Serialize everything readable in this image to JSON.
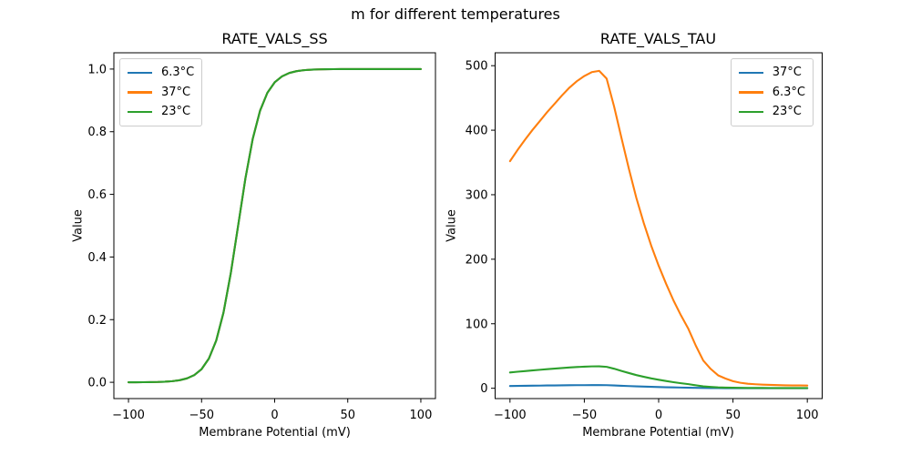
{
  "figure": {
    "title": "m for different temperatures",
    "background": "#ffffff",
    "text_color": "#000000",
    "spine_color": "#000000"
  },
  "chart_data": [
    {
      "type": "line",
      "title": "RATE_VALS_SS",
      "xlabel": "Membrane Potential (mV)",
      "ylabel": "Value",
      "axes_rect": [
        125,
        58,
        353,
        380
      ],
      "xlim": [
        -110,
        110
      ],
      "ylim": [
        -0.052,
        1.052
      ],
      "xticks": [
        -100,
        -50,
        0,
        50,
        100
      ],
      "xtick_labels": [
        "−100",
        "−50",
        "0",
        "50",
        "100"
      ],
      "yticks": [
        0.0,
        0.2,
        0.4,
        0.6,
        0.8,
        1.0
      ],
      "ytick_labels": [
        "0.0",
        "0.2",
        "0.4",
        "0.6",
        "0.8",
        "1.0"
      ],
      "grid": false,
      "legend_position": "upper-left",
      "legend": [
        {
          "label": "6.3°C",
          "color": "#1f77b4"
        },
        {
          "label": "37°C",
          "color": "#ff7f0e"
        },
        {
          "label": "23°C",
          "color": "#2ca02c"
        }
      ],
      "x": [
        -100,
        -95,
        -90,
        -85,
        -80,
        -75,
        -70,
        -65,
        -60,
        -55,
        -50,
        -45,
        -40,
        -35,
        -30,
        -25,
        -20,
        -15,
        -10,
        -5,
        0,
        5,
        10,
        15,
        20,
        25,
        30,
        35,
        40,
        45,
        50,
        55,
        60,
        65,
        70,
        75,
        80,
        85,
        90,
        95,
        100
      ],
      "series": [
        {
          "name": "6.3°C",
          "color": "#1f77b4",
          "values": [
            0.0001,
            0.0002,
            0.0003,
            0.0006,
            0.001,
            0.0019,
            0.0036,
            0.0067,
            0.0124,
            0.023,
            0.042,
            0.0759,
            0.133,
            0.2227,
            0.3487,
            0.5,
            0.6513,
            0.7773,
            0.867,
            0.9241,
            0.9576,
            0.9766,
            0.9876,
            0.9933,
            0.9964,
            0.9981,
            0.999,
            0.9995,
            0.9997,
            0.9999,
            0.9999,
            1.0,
            1.0,
            1.0,
            1.0,
            1.0,
            1.0,
            1.0,
            1.0,
            1.0,
            1.0
          ]
        },
        {
          "name": "37°C",
          "color": "#ff7f0e",
          "values": [
            0.0001,
            0.0002,
            0.0003,
            0.0006,
            0.001,
            0.0019,
            0.0036,
            0.0067,
            0.0124,
            0.023,
            0.042,
            0.0759,
            0.133,
            0.2227,
            0.3487,
            0.5,
            0.6513,
            0.7773,
            0.867,
            0.9241,
            0.9576,
            0.9766,
            0.9876,
            0.9933,
            0.9964,
            0.9981,
            0.999,
            0.9995,
            0.9997,
            0.9999,
            0.9999,
            1.0,
            1.0,
            1.0,
            1.0,
            1.0,
            1.0,
            1.0,
            1.0,
            1.0,
            1.0
          ]
        },
        {
          "name": "23°C",
          "color": "#2ca02c",
          "values": [
            0.0001,
            0.0002,
            0.0003,
            0.0006,
            0.001,
            0.0019,
            0.0036,
            0.0067,
            0.0124,
            0.023,
            0.042,
            0.0759,
            0.133,
            0.2227,
            0.3487,
            0.5,
            0.6513,
            0.7773,
            0.867,
            0.9241,
            0.9576,
            0.9766,
            0.9876,
            0.9933,
            0.9964,
            0.9981,
            0.999,
            0.9995,
            0.9997,
            0.9999,
            0.9999,
            1.0,
            1.0,
            1.0,
            1.0,
            1.0,
            1.0,
            1.0,
            1.0,
            1.0,
            1.0
          ]
        }
      ]
    },
    {
      "type": "line",
      "title": "RATE_VALS_TAU",
      "xlabel": "Membrane Potential (mV)",
      "ylabel": "Value",
      "axes_rect": [
        543.5,
        58,
        359,
        380
      ],
      "xlim": [
        -110,
        110
      ],
      "ylim": [
        -16,
        520
      ],
      "xticks": [
        -100,
        -50,
        0,
        50,
        100
      ],
      "xtick_labels": [
        "−100",
        "−50",
        "0",
        "50",
        "100"
      ],
      "yticks": [
        0,
        100,
        200,
        300,
        400,
        500
      ],
      "ytick_labels": [
        "0",
        "100",
        "200",
        "300",
        "400",
        "500"
      ],
      "grid": false,
      "legend_position": "upper-right",
      "legend": [
        {
          "label": "37°C",
          "color": "#1f77b4"
        },
        {
          "label": "6.3°C",
          "color": "#ff7f0e"
        },
        {
          "label": "23°C",
          "color": "#2ca02c"
        }
      ],
      "x": [
        -100,
        -95,
        -90,
        -85,
        -80,
        -75,
        -70,
        -65,
        -60,
        -55,
        -50,
        -45,
        -40,
        -35,
        -30,
        -25,
        -20,
        -15,
        -10,
        -5,
        0,
        5,
        10,
        15,
        20,
        25,
        30,
        35,
        40,
        45,
        50,
        55,
        60,
        65,
        70,
        75,
        80,
        85,
        90,
        95,
        100
      ],
      "series": [
        {
          "name": "37°C",
          "color": "#1f77b4",
          "values": [
            3.5,
            3.7,
            3.9,
            4.0,
            4.1,
            4.3,
            4.4,
            4.5,
            4.7,
            4.8,
            4.8,
            4.9,
            4.9,
            4.8,
            4.4,
            3.9,
            3.4,
            3.0,
            2.6,
            2.2,
            1.9,
            1.6,
            1.4,
            1.1,
            0.9,
            0.7,
            0.45,
            0.3,
            0.2,
            0.15,
            0.11,
            0.09,
            0.07,
            0.06,
            0.06,
            0.05,
            0.05,
            0.04,
            0.04,
            0.04,
            0.04
          ]
        },
        {
          "name": "6.3°C",
          "color": "#ff7f0e",
          "values": [
            352,
            369,
            385,
            400,
            414,
            428,
            441,
            454,
            466,
            476,
            484,
            490,
            492,
            480,
            437,
            388,
            340,
            295,
            256,
            221,
            190,
            162,
            136,
            113,
            92,
            66,
            43,
            30,
            20,
            15,
            11,
            8.5,
            7,
            6.2,
            5.6,
            5.2,
            4.9,
            4.6,
            4.4,
            4.3,
            4.2
          ]
        },
        {
          "name": "23°C",
          "color": "#2ca02c",
          "values": [
            24.5,
            25.6,
            26.6,
            27.6,
            28.6,
            29.6,
            30.5,
            31.4,
            32.2,
            32.9,
            33.5,
            33.9,
            34.0,
            33.2,
            30.3,
            26.9,
            23.6,
            20.4,
            17.8,
            15.3,
            13.2,
            11.2,
            9.4,
            7.8,
            6.4,
            4.6,
            3.0,
            2.1,
            1.4,
            1.0,
            0.8,
            0.65,
            0.55,
            0.5,
            0.45,
            0.4,
            0.38,
            0.36,
            0.34,
            0.33,
            0.32
          ]
        }
      ]
    }
  ]
}
